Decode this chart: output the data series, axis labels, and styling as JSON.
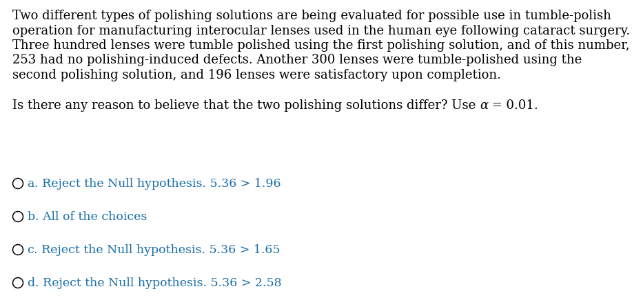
{
  "background_color": "#ffffff",
  "paragraph1_lines": [
    "Two different types of polishing solutions are being evaluated for possible use in tumble-polish",
    "operation for manufacturing interocular lenses used in the human eye following cataract surgery.",
    "Three hundred lenses were tumble polished using the first polishing solution, and of this number,",
    "253 had no polishing-induced defects. Another 300 lenses were tumble-polished using the",
    "second polishing solution, and 196 lenses were satisfactory upon completion."
  ],
  "question_plain": "Is there any reason to believe that the two polishing solutions differ? Use ",
  "question_alpha": "α",
  "question_end": " = 0.01.",
  "options": [
    {
      "letter": "a",
      "rest": ". Reject the Null hypothesis. 5.36 > 1.96"
    },
    {
      "letter": "b",
      "rest": ". All of the choices"
    },
    {
      "letter": "c",
      "rest": ". Reject the Null hypothesis. 5.36 > 1.65"
    },
    {
      "letter": "d",
      "rest": ". Reject the Null hypothesis. 5.36 > 2.58"
    }
  ],
  "text_color": "#000000",
  "option_color": "#1a6fa8",
  "font_size_body": 13.0,
  "font_size_options": 12.5,
  "figsize": [
    9.17,
    4.32
  ],
  "dpi": 100
}
